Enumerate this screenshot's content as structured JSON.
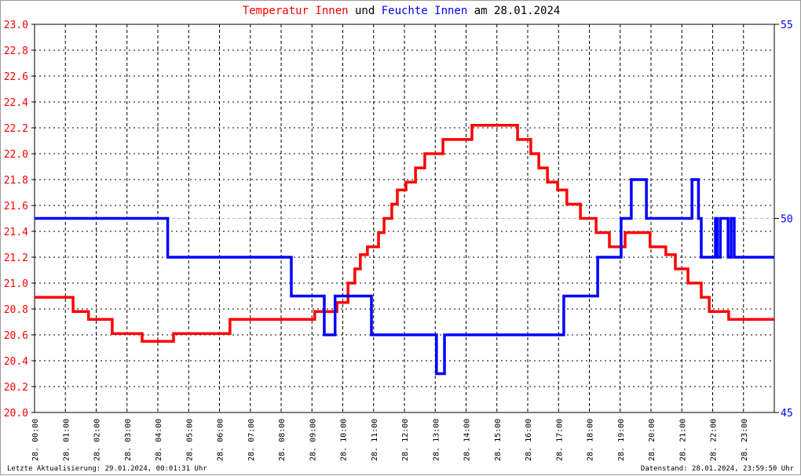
{
  "title": {
    "part1": "Temperatur Innen",
    "part2": "und",
    "part3": "Feuchte Innen",
    "part4": "am 28.01.2024"
  },
  "footer": {
    "left": "Letzte Aktualisierung: 29.01.2024, 00:01:31 Uhr",
    "right": "Datenstand: 28.01.2024, 23:59:50 Uhr"
  },
  "colors": {
    "temperature": "#ff0000",
    "humidity": "#0000ff",
    "grid": "#000000",
    "reference": "#bbbbbb"
  },
  "chart_data": {
    "type": "line",
    "step": true,
    "x_unit": "hour of day",
    "xlim": [
      0,
      24
    ],
    "x_tick_labels": [
      "28. 00:00",
      "28. 01:00",
      "28. 02:00",
      "28. 03:00",
      "28. 04:00",
      "28. 05:00",
      "28. 06:00",
      "28. 07:00",
      "28. 08:00",
      "28. 09:00",
      "28. 10:00",
      "28. 11:00",
      "28. 12:00",
      "28. 13:00",
      "28. 14:00",
      "28. 15:00",
      "28. 16:00",
      "28. 17:00",
      "28. 18:00",
      "28. 19:00",
      "28. 20:00",
      "28. 21:00",
      "28. 22:00",
      "28. 23:00"
    ],
    "y_left": {
      "lim": [
        20.0,
        23.0
      ],
      "ticks": [
        "20.0",
        "20.2",
        "20.4",
        "20.6",
        "20.8",
        "21.0",
        "21.2",
        "21.4",
        "21.6",
        "21.8",
        "22.0",
        "22.2",
        "22.4",
        "22.6",
        "22.8",
        "23.0"
      ]
    },
    "y_right": {
      "lim": [
        45,
        55
      ],
      "ticks": [
        "45",
        "50",
        "55"
      ]
    },
    "grid": true,
    "series": [
      {
        "name": "Temperatur Innen",
        "axis": "left",
        "points": [
          [
            0,
            20.89
          ],
          [
            1.25,
            20.78
          ],
          [
            1.75,
            20.72
          ],
          [
            2.52,
            20.61
          ],
          [
            3.49,
            20.55
          ],
          [
            4.51,
            20.61
          ],
          [
            6.34,
            20.72
          ],
          [
            9.09,
            20.78
          ],
          [
            9.81,
            20.85
          ],
          [
            10.17,
            21.0
          ],
          [
            10.39,
            21.11
          ],
          [
            10.57,
            21.22
          ],
          [
            10.8,
            21.28
          ],
          [
            11.16,
            21.39
          ],
          [
            11.34,
            21.5
          ],
          [
            11.59,
            21.61
          ],
          [
            11.77,
            21.72
          ],
          [
            12.05,
            21.78
          ],
          [
            12.36,
            21.89
          ],
          [
            12.66,
            22.0
          ],
          [
            13.25,
            22.11
          ],
          [
            14.19,
            22.22
          ],
          [
            15.67,
            22.11
          ],
          [
            16.1,
            22.0
          ],
          [
            16.36,
            21.89
          ],
          [
            16.64,
            21.78
          ],
          [
            16.97,
            21.72
          ],
          [
            17.27,
            21.61
          ],
          [
            17.71,
            21.5
          ],
          [
            18.22,
            21.39
          ],
          [
            18.65,
            21.28
          ],
          [
            19.16,
            21.39
          ],
          [
            19.97,
            21.28
          ],
          [
            20.48,
            21.22
          ],
          [
            20.79,
            21.11
          ],
          [
            21.2,
            21.0
          ],
          [
            21.63,
            20.89
          ],
          [
            21.89,
            20.78
          ],
          [
            22.52,
            20.72
          ],
          [
            24,
            20.72
          ]
        ]
      },
      {
        "name": "Feuchte Innen",
        "axis": "right",
        "points": [
          [
            0,
            50
          ],
          [
            4.32,
            49
          ],
          [
            8.33,
            48
          ],
          [
            9.4,
            47
          ],
          [
            9.75,
            48
          ],
          [
            10.93,
            47
          ],
          [
            13.04,
            46
          ],
          [
            13.3,
            47
          ],
          [
            17.17,
            48
          ],
          [
            18.27,
            49
          ],
          [
            19.03,
            50
          ],
          [
            19.36,
            51
          ],
          [
            19.85,
            50
          ],
          [
            21.33,
            51
          ],
          [
            21.54,
            50
          ],
          [
            21.63,
            49
          ],
          [
            22.09,
            50
          ],
          [
            22.15,
            49
          ],
          [
            22.25,
            50
          ],
          [
            22.5,
            49
          ],
          [
            22.6,
            50
          ],
          [
            22.7,
            49
          ],
          [
            24,
            49
          ]
        ]
      }
    ]
  }
}
